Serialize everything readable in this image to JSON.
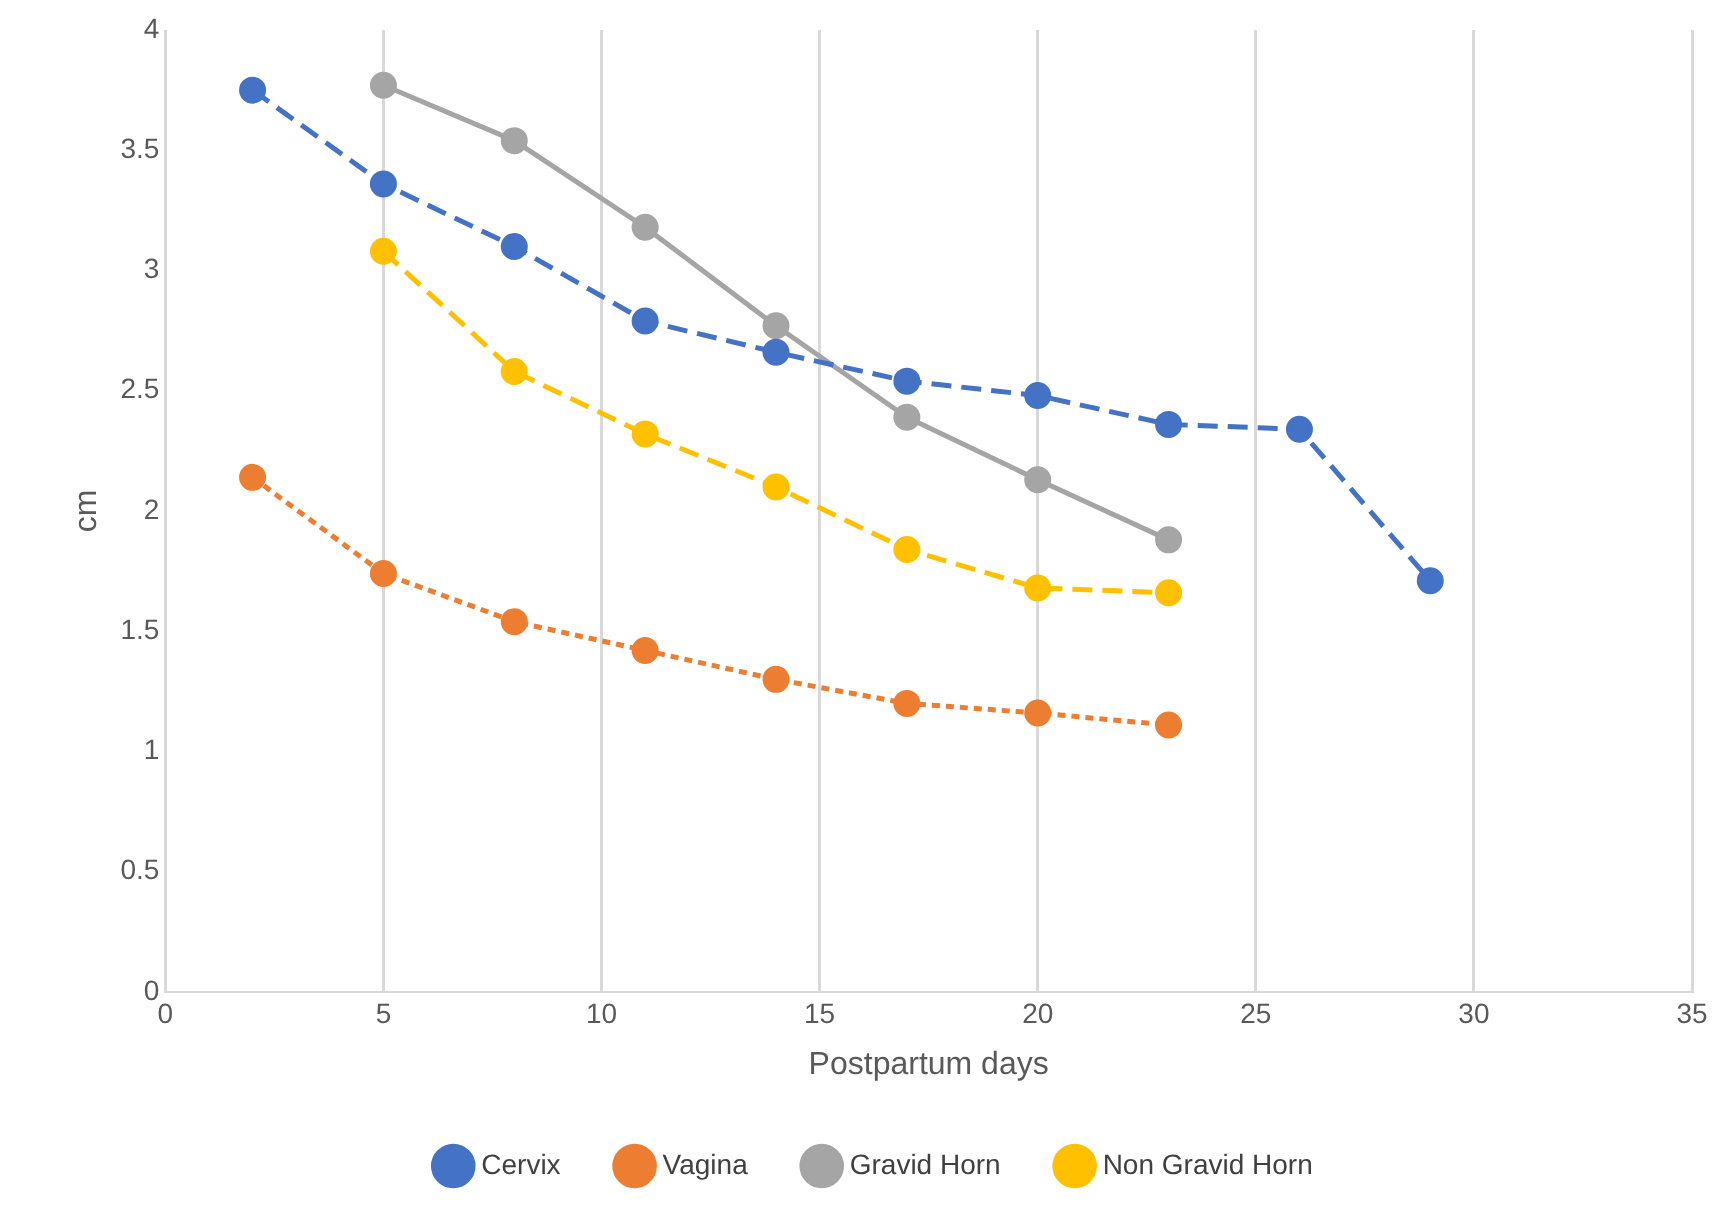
{
  "chart_data": {
    "type": "line",
    "xlabel": "Postpartum days",
    "ylabel": "cm",
    "xlim": [
      0,
      35
    ],
    "xticks": [
      0,
      5,
      10,
      15,
      20,
      25,
      30,
      35
    ],
    "ylim": [
      0,
      4
    ],
    "yticks": [
      0,
      0.5,
      1,
      1.5,
      2,
      2.5,
      3,
      3.5,
      4
    ],
    "grid": "x",
    "legend": "bottom",
    "marker": "circle",
    "series": [
      {
        "name": "Cervix",
        "color": "#4472c4",
        "line_style": "dashed",
        "x": [
          2,
          5,
          8,
          11,
          14,
          17,
          20,
          23,
          26,
          29
        ],
        "values": [
          3.75,
          3.36,
          3.1,
          2.79,
          2.66,
          2.54,
          2.48,
          2.36,
          2.34,
          1.71
        ]
      },
      {
        "name": "Vagina",
        "color": "#ed7d31",
        "line_style": "dotted",
        "x": [
          2,
          5,
          8,
          11,
          14,
          17,
          20,
          23
        ],
        "values": [
          2.14,
          1.74,
          1.54,
          1.42,
          1.3,
          1.2,
          1.16,
          1.11
        ]
      },
      {
        "name": "Gravid Horn",
        "color": "#a5a5a5",
        "line_style": "solid",
        "x": [
          5,
          8,
          11,
          14,
          17,
          20,
          23
        ],
        "values": [
          3.77,
          3.54,
          3.18,
          2.77,
          2.39,
          2.13,
          1.88
        ]
      },
      {
        "name": "Non Gravid Horn",
        "color": "#ffc000",
        "line_style": "dashed",
        "x": [
          5,
          8,
          11,
          14,
          17,
          20,
          23
        ],
        "values": [
          3.08,
          2.58,
          2.32,
          2.1,
          1.84,
          1.68,
          1.66
        ]
      }
    ]
  }
}
